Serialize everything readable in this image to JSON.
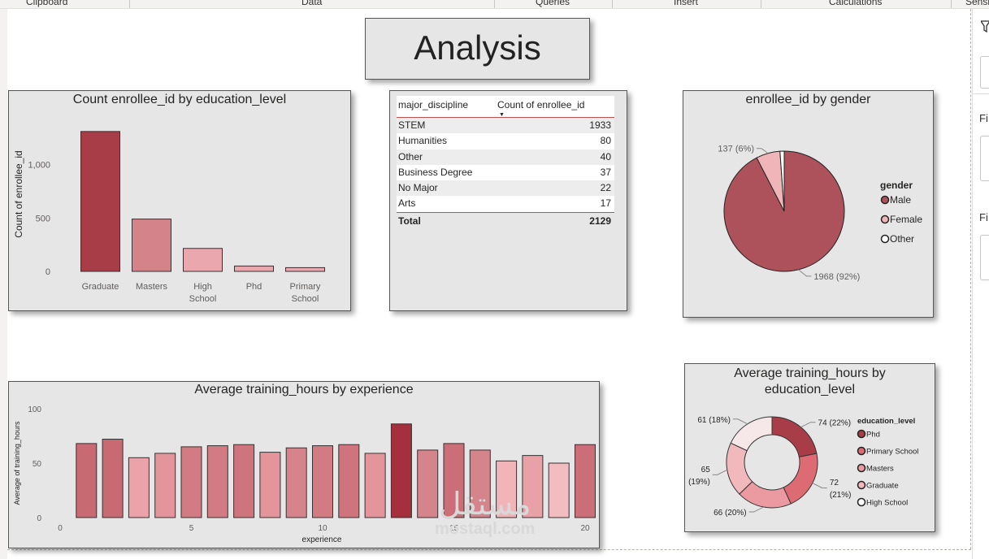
{
  "ribbon": {
    "groups": [
      "Clipboard",
      "Data",
      "Queries",
      "Insert",
      "Calculations",
      "Sensi"
    ]
  },
  "right_pane": {
    "labels": [
      "Fi",
      "Fi"
    ]
  },
  "page": {
    "title": "Analysis"
  },
  "colors": {
    "dark": "#a83d48",
    "mid": "#d4838a",
    "light": "#eaa8ae",
    "panel_bg": "#e6e6e6"
  },
  "bar_chart_edu": {
    "title": "Count enrollee_id by education_level",
    "chart_data": {
      "type": "bar",
      "categories": [
        "Graduate",
        "Masters",
        "High School",
        "Phd",
        "Primary School"
      ],
      "category_lines": [
        [
          "Graduate"
        ],
        [
          "Masters"
        ],
        [
          "High",
          "School"
        ],
        [
          "Phd"
        ],
        [
          "Primary",
          "School"
        ]
      ],
      "values": [
        1310,
        490,
        215,
        50,
        35
      ],
      "ylabel": "Count of enrollee_id",
      "xlabel": "",
      "yticks": [
        0,
        500,
        1000
      ],
      "ytick_labels": [
        "0",
        "500",
        "1,000"
      ],
      "ylim": [
        0,
        1400
      ]
    }
  },
  "table_major": {
    "headers": [
      "major_discipline",
      "Count of enrollee_id"
    ],
    "rows": [
      {
        "name": "STEM",
        "count": "1933"
      },
      {
        "name": "Humanities",
        "count": "80"
      },
      {
        "name": "Other",
        "count": "40"
      },
      {
        "name": "Business Degree",
        "count": "37"
      },
      {
        "name": "No Major",
        "count": "22"
      },
      {
        "name": "Arts",
        "count": "17"
      }
    ],
    "total_label": "Total",
    "total_value": "2129"
  },
  "pie_gender": {
    "title": "enrollee_id by gender",
    "legend_title": "gender",
    "chart_data": {
      "type": "pie",
      "labels": [
        "Male",
        "Female",
        "Other"
      ],
      "values": [
        1968,
        137,
        24
      ],
      "data_labels": [
        "1968 (92%)",
        "137 (6%)",
        ""
      ],
      "colors": [
        "#ad525b",
        "#efb5b9",
        "#ffffff"
      ],
      "legend_markers": [
        "#ad525b",
        "#efb5b9",
        "#ffffff"
      ],
      "legend": "right"
    }
  },
  "bar_chart_exp": {
    "title": "Average training_hours by experience",
    "chart_data": {
      "type": "bar",
      "x": [
        1,
        2,
        3,
        4,
        5,
        6,
        7,
        8,
        9,
        10,
        11,
        12,
        13,
        14,
        15,
        16,
        17,
        18,
        19,
        20
      ],
      "values": [
        68,
        72,
        55,
        59,
        65,
        66,
        67,
        60,
        64,
        66,
        67,
        59,
        86,
        62,
        68,
        62,
        52,
        57,
        50,
        67
      ],
      "colors": [
        "#c96a73",
        "#c96a73",
        "#eba3a9",
        "#e4959c",
        "#d27b83",
        "#d27b83",
        "#cf747d",
        "#e4959c",
        "#d6848b",
        "#d27b83",
        "#cf747d",
        "#e4959c",
        "#a52f3c",
        "#d6848b",
        "#cc6e77",
        "#d6848b",
        "#f0b4b9",
        "#e8a1a7",
        "#f3bcc0",
        "#cc6e77"
      ],
      "xlabel": "experience",
      "ylabel": "Average of training_hours",
      "xticks": [
        0,
        5,
        10,
        15,
        20
      ],
      "yticks": [
        0,
        50,
        100
      ],
      "ylim": [
        0,
        100
      ]
    }
  },
  "donut_train": {
    "title_lines": [
      "Average training_hours by",
      "education_level"
    ],
    "legend_title": "education_level",
    "chart_data": {
      "type": "pie",
      "labels": [
        "Phd",
        "Primary School",
        "Masters",
        "Graduate",
        "High School"
      ],
      "values": [
        74,
        72,
        66,
        65,
        61
      ],
      "data_labels": [
        [
          "74 (22%)"
        ],
        [
          "72",
          "(21%)"
        ],
        [
          "66 (20%)"
        ],
        [
          "65",
          "(19%)"
        ],
        [
          "61 (18%)"
        ]
      ],
      "colors": [
        "#a83d48",
        "#dd6b73",
        "#ea9aa0",
        "#f2b9bd",
        "#f6e8e9"
      ],
      "legend_markers": [
        "#a83d48",
        "#dd6b73",
        "#ea9aa0",
        "#f2b9bd",
        "#ffffff"
      ],
      "legend": "right"
    }
  },
  "watermark": {
    "arabic": "مستقل",
    "latin": "mostaql.com"
  }
}
